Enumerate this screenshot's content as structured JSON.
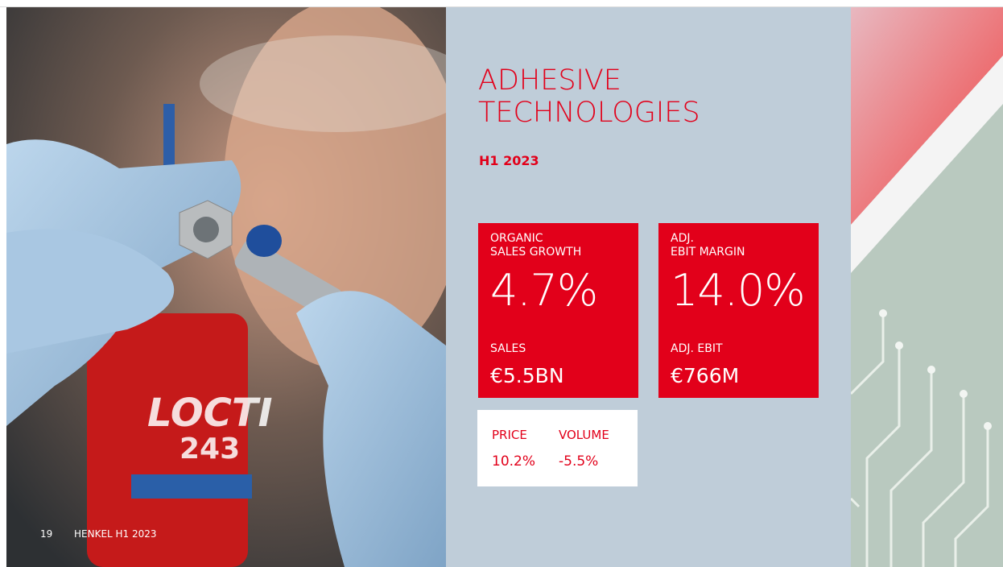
{
  "slide": {
    "title": [
      "ADHESIVE",
      "TECHNOLOGIES"
    ],
    "subtitle": "H1 2023",
    "kpis": [
      {
        "label": [
          "ORGANIC",
          "SALES GROWTH"
        ],
        "value": "4.7%",
        "sub_label": "SALES",
        "sub_value": "€5.5BN"
      },
      {
        "label": [
          "ADJ.",
          "EBIT MARGIN"
        ],
        "value": "14.0%",
        "sub_label": "ADJ. EBIT",
        "sub_value": "€766M"
      }
    ],
    "breakdown": [
      {
        "label": "PRICE",
        "value": "10.2%"
      },
      {
        "label": "VOLUME",
        "value": "-5.5%"
      }
    ],
    "footer": {
      "page": "19",
      "text": "HENKEL H1 2023"
    }
  }
}
